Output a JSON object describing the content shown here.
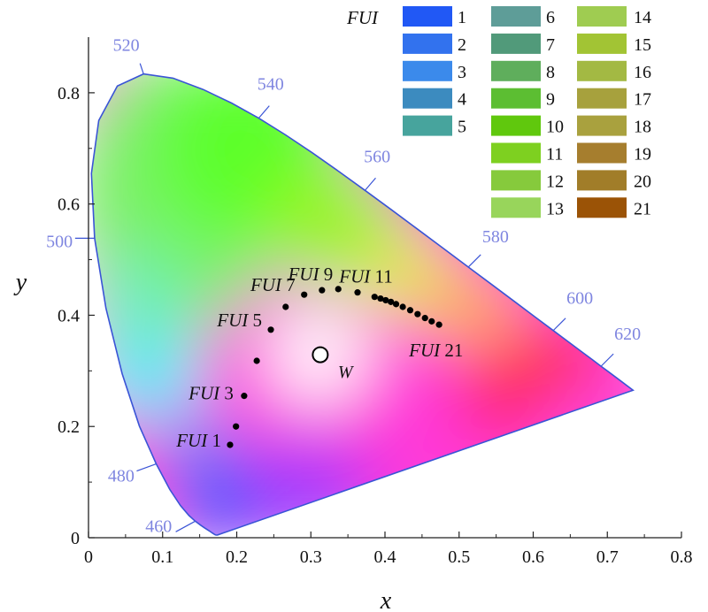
{
  "chart_data": {
    "type": "scatter",
    "title": "",
    "xlabel": "x",
    "ylabel": "y",
    "xlim": [
      0,
      0.8
    ],
    "ylim": [
      0,
      0.9
    ],
    "xticks": [
      "0",
      "0.1",
      "0.2",
      "0.3",
      "0.4",
      "0.5",
      "0.6",
      "0.7",
      "0.8"
    ],
    "yticks": [
      "0",
      "0.2",
      "0.4",
      "0.6",
      "0.8"
    ],
    "ytick_values": [
      0,
      0.2,
      0.4,
      0.6,
      0.8
    ],
    "grid": false,
    "spectral_locus": [
      [
        0.1741,
        0.005
      ],
      [
        0.1738,
        0.0049
      ],
      [
        0.1736,
        0.0049
      ],
      [
        0.1733,
        0.0048
      ],
      [
        0.173,
        0.0048
      ],
      [
        0.1726,
        0.0048
      ],
      [
        0.1721,
        0.0048
      ],
      [
        0.1714,
        0.0051
      ],
      [
        0.1703,
        0.0058
      ],
      [
        0.1689,
        0.0069
      ],
      [
        0.1669,
        0.0086
      ],
      [
        0.1644,
        0.0109
      ],
      [
        0.1611,
        0.0138
      ],
      [
        0.1566,
        0.0177
      ],
      [
        0.151,
        0.0227
      ],
      [
        0.144,
        0.0297
      ],
      [
        0.1355,
        0.0399
      ],
      [
        0.1241,
        0.0578
      ],
      [
        0.1096,
        0.0868
      ],
      [
        0.0913,
        0.1327
      ],
      [
        0.0687,
        0.2007
      ],
      [
        0.0454,
        0.295
      ],
      [
        0.0235,
        0.4127
      ],
      [
        0.0082,
        0.5384
      ],
      [
        0.0039,
        0.6548
      ],
      [
        0.0139,
        0.7502
      ],
      [
        0.0389,
        0.812
      ],
      [
        0.0743,
        0.8338
      ],
      [
        0.1142,
        0.8262
      ],
      [
        0.1547,
        0.8059
      ],
      [
        0.1929,
        0.7816
      ],
      [
        0.2296,
        0.7543
      ],
      [
        0.2658,
        0.7243
      ],
      [
        0.3016,
        0.6923
      ],
      [
        0.3373,
        0.6589
      ],
      [
        0.3731,
        0.6245
      ],
      [
        0.4087,
        0.5896
      ],
      [
        0.4441,
        0.5547
      ],
      [
        0.4788,
        0.5202
      ],
      [
        0.5125,
        0.4866
      ],
      [
        0.5448,
        0.4544
      ],
      [
        0.5752,
        0.4242
      ],
      [
        0.6029,
        0.3965
      ],
      [
        0.627,
        0.3725
      ],
      [
        0.6482,
        0.3514
      ],
      [
        0.6658,
        0.334
      ],
      [
        0.6801,
        0.3197
      ],
      [
        0.6915,
        0.3083
      ],
      [
        0.7006,
        0.2993
      ],
      [
        0.714,
        0.2859
      ],
      [
        0.7347,
        0.2653
      ]
    ],
    "wavelength_labels": [
      {
        "label": "460",
        "x": 0.144,
        "y": 0.0297
      },
      {
        "label": "480",
        "x": 0.0913,
        "y": 0.1327
      },
      {
        "label": "500",
        "x": 0.0082,
        "y": 0.5384
      },
      {
        "label": "520",
        "x": 0.0743,
        "y": 0.8338
      },
      {
        "label": "540",
        "x": 0.2296,
        "y": 0.7543
      },
      {
        "label": "560",
        "x": 0.3731,
        "y": 0.6245
      },
      {
        "label": "580",
        "x": 0.5125,
        "y": 0.4866
      },
      {
        "label": "600",
        "x": 0.627,
        "y": 0.3725
      },
      {
        "label": "620",
        "x": 0.6915,
        "y": 0.3083
      }
    ],
    "white_point": {
      "label": "W",
      "x": 0.3127,
      "y": 0.329
    },
    "fui_points": [
      {
        "fui": 1,
        "x": 0.191,
        "y": 0.167
      },
      {
        "fui": 2,
        "x": 0.199,
        "y": 0.2
      },
      {
        "fui": 3,
        "x": 0.21,
        "y": 0.255
      },
      {
        "fui": 4,
        "x": 0.227,
        "y": 0.318
      },
      {
        "fui": 5,
        "x": 0.246,
        "y": 0.374
      },
      {
        "fui": 6,
        "x": 0.266,
        "y": 0.415
      },
      {
        "fui": 7,
        "x": 0.291,
        "y": 0.437
      },
      {
        "fui": 8,
        "x": 0.315,
        "y": 0.445
      },
      {
        "fui": 9,
        "x": 0.337,
        "y": 0.447
      },
      {
        "fui": 10,
        "x": 0.363,
        "y": 0.441
      },
      {
        "fui": 11,
        "x": 0.386,
        "y": 0.433
      },
      {
        "fui": 12,
        "x": 0.394,
        "y": 0.43
      },
      {
        "fui": 13,
        "x": 0.401,
        "y": 0.427
      },
      {
        "fui": 14,
        "x": 0.408,
        "y": 0.424
      },
      {
        "fui": 15,
        "x": 0.415,
        "y": 0.42
      },
      {
        "fui": 16,
        "x": 0.424,
        "y": 0.415
      },
      {
        "fui": 17,
        "x": 0.434,
        "y": 0.409
      },
      {
        "fui": 18,
        "x": 0.444,
        "y": 0.402
      },
      {
        "fui": 19,
        "x": 0.454,
        "y": 0.395
      },
      {
        "fui": 20,
        "x": 0.463,
        "y": 0.389
      },
      {
        "fui": 21,
        "x": 0.473,
        "y": 0.383
      }
    ],
    "fui_labels": [
      {
        "fui": 1,
        "text_italic": "FUI",
        "text_num": " 1"
      },
      {
        "fui": 3,
        "text_italic": "FUI",
        "text_num": " 3"
      },
      {
        "fui": 5,
        "text_italic": "FUI",
        "text_num": " 5"
      },
      {
        "fui": 7,
        "text_italic": "FUI",
        "text_num": " 7"
      },
      {
        "fui": 9,
        "text_italic": "FUI",
        "text_num": " 9"
      },
      {
        "fui": 11,
        "text_italic": "FUI",
        "text_num": " 11"
      },
      {
        "fui": 21,
        "text_italic": "FUI",
        "text_num": " 21"
      }
    ],
    "legend": {
      "title": "FUI",
      "placement": "top-right",
      "columns": 3,
      "entries": [
        {
          "label": "1",
          "color": "#2158f5"
        },
        {
          "label": "2",
          "color": "#3272ee"
        },
        {
          "label": "3",
          "color": "#3b8aeb"
        },
        {
          "label": "4",
          "color": "#3c8bbf"
        },
        {
          "label": "5",
          "color": "#47a49d"
        },
        {
          "label": "6",
          "color": "#5e9d98"
        },
        {
          "label": "7",
          "color": "#519a7a"
        },
        {
          "label": "8",
          "color": "#5fae5c"
        },
        {
          "label": "9",
          "color": "#5cbe32"
        },
        {
          "label": "10",
          "color": "#60c80d"
        },
        {
          "label": "11",
          "color": "#7ed020"
        },
        {
          "label": "12",
          "color": "#86ca3c"
        },
        {
          "label": "13",
          "color": "#98d55b"
        },
        {
          "label": "14",
          "color": "#9fcc51"
        },
        {
          "label": "15",
          "color": "#a2c434"
        },
        {
          "label": "16",
          "color": "#a3b943"
        },
        {
          "label": "17",
          "color": "#a7a13d"
        },
        {
          "label": "18",
          "color": "#a9a13e"
        },
        {
          "label": "19",
          "color": "#a67e2e"
        },
        {
          "label": "20",
          "color": "#a17d29"
        },
        {
          "label": "21",
          "color": "#9b5306"
        }
      ]
    },
    "colors": {
      "locus_stroke": "#3a54d6",
      "wavelength_text": "#7f86e0",
      "point": "#000000"
    }
  }
}
